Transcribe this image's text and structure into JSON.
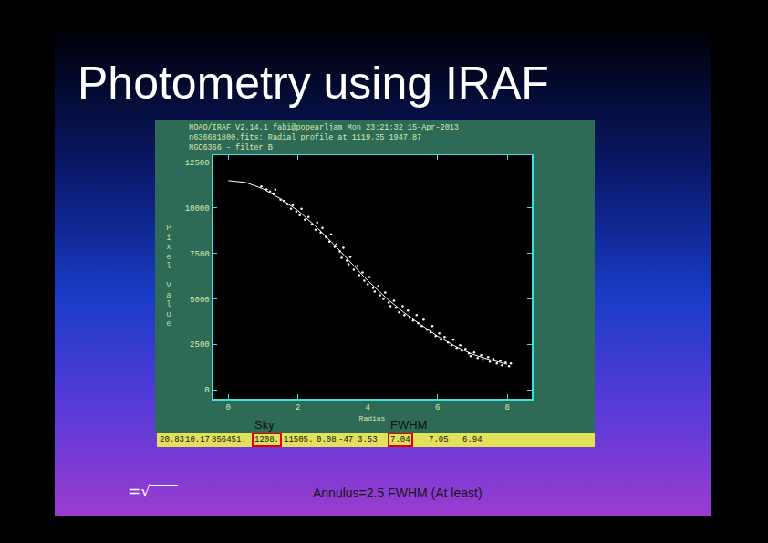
{
  "slide": {
    "title": "Photometry using IRAF",
    "formula": "=√",
    "note": "Annulus=2.5 FWHM (At least)",
    "status_bar": [
      "20.83",
      "10.17",
      "856451.",
      "1208.",
      "11505.",
      "0.08",
      "-47",
      "3.53",
      "7.04",
      "7.05",
      "6.94"
    ],
    "highlights": [
      {
        "label": "Sky",
        "value": "1208."
      },
      {
        "label": "FWHM",
        "value": "7.04"
      }
    ]
  },
  "chart_data": {
    "type": "scatter",
    "title": [
      "NOAO/IRAF V2.14.1 fabi@popearljam Mon 23:21:32 15-Apr-2013",
      "n636681800.fits: Radial profile at 1119.35 1947.87",
      "NGC6366 - filter B"
    ],
    "x_label": "Radius",
    "y_label": "Pixel Value",
    "xlim": [
      -0.45,
      8.7
    ],
    "ylim": [
      -500,
      12900
    ],
    "xticks": [
      0,
      2,
      4,
      6,
      8
    ],
    "yticks": [
      0,
      2500,
      5000,
      7500,
      10000,
      12500
    ],
    "grid": false,
    "series": [
      {
        "type": "scatter",
        "marker": "circle",
        "color": "#ffffff",
        "x": [
          0.95,
          1.1,
          1.2,
          1.3,
          1.35,
          1.5,
          1.6,
          1.7,
          1.8,
          1.85,
          1.95,
          2.05,
          2.1,
          2.2,
          2.3,
          2.4,
          2.5,
          2.55,
          2.65,
          2.7,
          2.8,
          2.9,
          2.95,
          3.05,
          3.1,
          3.2,
          3.25,
          3.3,
          3.4,
          3.45,
          3.5,
          3.6,
          3.7,
          3.75,
          3.85,
          3.9,
          4.0,
          4.05,
          4.15,
          4.2,
          4.3,
          4.35,
          4.45,
          4.5,
          4.6,
          4.65,
          4.75,
          4.8,
          4.9,
          5.0,
          5.05,
          5.15,
          5.2,
          5.3,
          5.4,
          5.45,
          5.55,
          5.6,
          5.7,
          5.8,
          5.85,
          5.95,
          6.05,
          6.1,
          6.2,
          6.3,
          6.4,
          6.45,
          6.55,
          6.65,
          6.7,
          6.8,
          6.9,
          6.95,
          7.05,
          7.15,
          7.25,
          7.3,
          7.45,
          7.5,
          7.6,
          7.7,
          7.8,
          7.85,
          7.95,
          8.05,
          8.1
        ],
        "values": [
          11180,
          11020,
          10900,
          10780,
          11000,
          10450,
          10380,
          10200,
          9950,
          10150,
          9800,
          9600,
          9950,
          9350,
          9500,
          9100,
          8800,
          9200,
          8650,
          8900,
          8400,
          8150,
          8550,
          7850,
          8000,
          7600,
          7250,
          7800,
          7100,
          6900,
          7300,
          6600,
          6800,
          6300,
          6450,
          6000,
          5800,
          6200,
          5600,
          5400,
          5700,
          5200,
          5000,
          5350,
          4800,
          4600,
          4900,
          4500,
          4250,
          4600,
          4100,
          4350,
          3950,
          3800,
          4100,
          3650,
          3500,
          3850,
          3300,
          3150,
          3500,
          2950,
          3100,
          2750,
          2900,
          2600,
          2450,
          2750,
          2300,
          2450,
          2150,
          2250,
          2000,
          1850,
          2050,
          1750,
          1900,
          1650,
          1800,
          1550,
          1700,
          1450,
          1600,
          1350,
          1500,
          1300,
          1450
        ]
      },
      {
        "type": "line",
        "line_style": "solid",
        "color": "#ffffff",
        "x": [
          0,
          0.5,
          1,
          1.5,
          2,
          2.5,
          3,
          3.5,
          4,
          4.5,
          5,
          5.5,
          6,
          6.5,
          7,
          7.5,
          8
        ],
        "values": [
          11500,
          11400,
          11050,
          10500,
          9850,
          9000,
          8050,
          7000,
          6000,
          5100,
          4300,
          3600,
          2950,
          2400,
          1950,
          1650,
          1400
        ]
      }
    ]
  }
}
